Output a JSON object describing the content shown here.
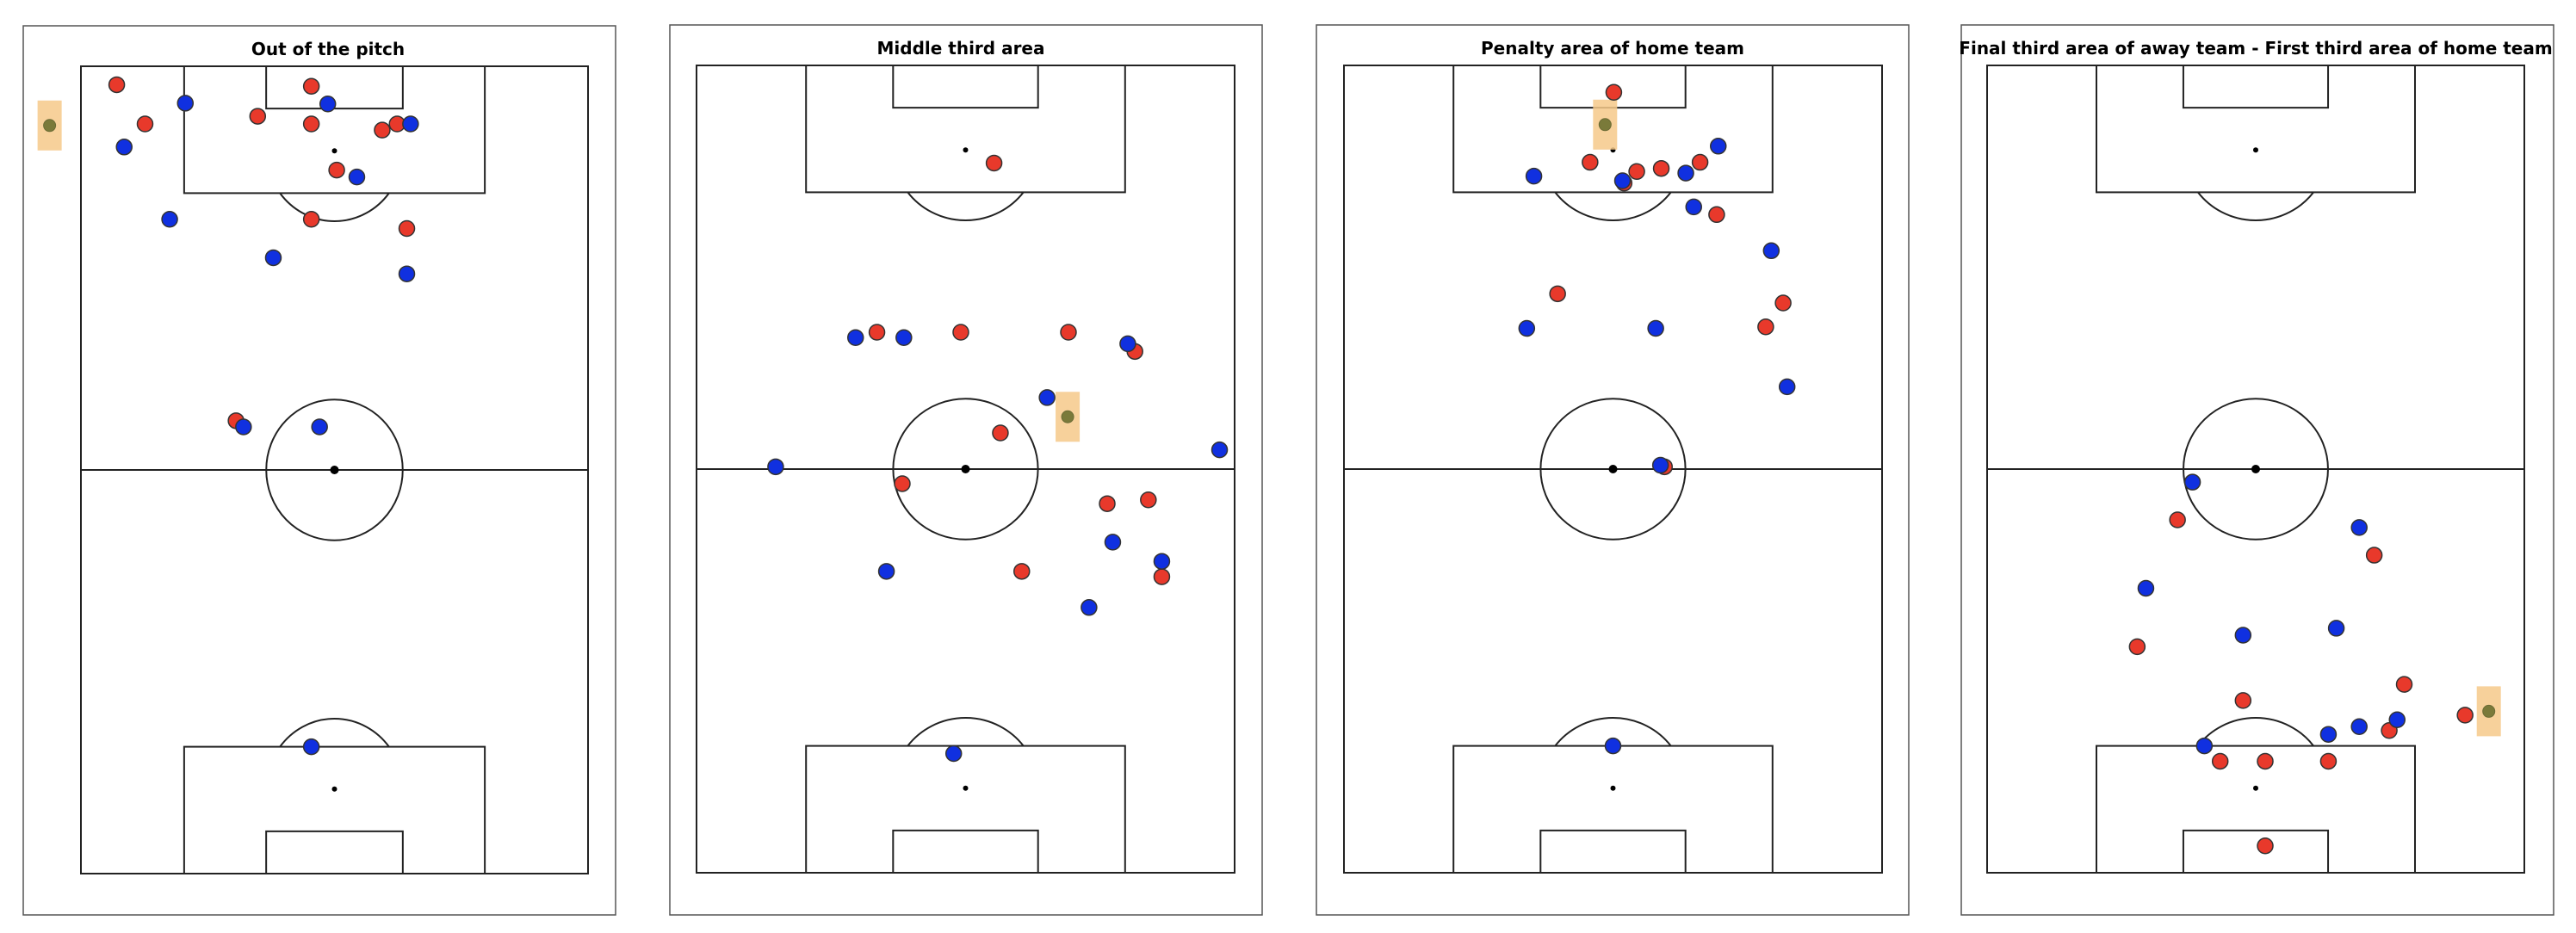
{
  "colors": {
    "home": "#e8392b",
    "away": "#1030e0",
    "ball": "#7a7a3a",
    "ball_highlight": "#f6c98a",
    "lines": "#222222",
    "frame": "#555555"
  },
  "chart_data": [
    {
      "type": "scatter",
      "title": "Out of the pitch",
      "xlim": [
        0,
        68
      ],
      "ylim": [
        0,
        105
      ],
      "home": [
        [
          4.8,
          102.6
        ],
        [
          8.6,
          97.5
        ],
        [
          30.9,
          102.4
        ],
        [
          23.7,
          98.5
        ],
        [
          30.9,
          97.5
        ],
        [
          40.4,
          96.7
        ],
        [
          42.4,
          97.5
        ],
        [
          34.3,
          91.5
        ],
        [
          30.9,
          85.1
        ],
        [
          43.7,
          83.9
        ],
        [
          20.8,
          58.9
        ]
      ],
      "away": [
        [
          14.0,
          100.2
        ],
        [
          5.8,
          94.5
        ],
        [
          33.1,
          100.1
        ],
        [
          44.2,
          97.5
        ],
        [
          37.0,
          90.6
        ],
        [
          11.9,
          85.1
        ],
        [
          25.8,
          80.1
        ],
        [
          43.7,
          78.0
        ],
        [
          21.8,
          58.1
        ],
        [
          32.0,
          58.1
        ],
        [
          30.9,
          16.5
        ]
      ],
      "ball": [
        -4.2,
        97.3
      ]
    },
    {
      "type": "scatter",
      "title": "Middle third area",
      "xlim": [
        0,
        68
      ],
      "ylim": [
        0,
        105
      ],
      "home": [
        [
          37.6,
          92.3
        ],
        [
          22.8,
          70.3
        ],
        [
          33.4,
          70.3
        ],
        [
          47.0,
          70.3
        ],
        [
          55.4,
          67.8
        ],
        [
          38.4,
          57.2
        ],
        [
          26.0,
          50.6
        ],
        [
          57.1,
          48.5
        ],
        [
          51.9,
          48.0
        ],
        [
          58.8,
          38.5
        ],
        [
          41.1,
          39.2
        ]
      ],
      "away": [
        [
          20.1,
          69.6
        ],
        [
          26.2,
          69.6
        ],
        [
          54.5,
          68.8
        ],
        [
          44.3,
          61.8
        ],
        [
          10.0,
          52.8
        ],
        [
          66.1,
          55.0
        ],
        [
          52.6,
          43.0
        ],
        [
          24.0,
          39.2
        ],
        [
          58.8,
          40.5
        ],
        [
          49.6,
          34.5
        ],
        [
          32.5,
          15.5
        ]
      ],
      "ball": [
        46.9,
        59.3
      ]
    },
    {
      "type": "scatter",
      "title": "Penalty area of home team",
      "xlim": [
        0,
        68
      ],
      "ylim": [
        0,
        105
      ],
      "home": [
        [
          34.1,
          101.5
        ],
        [
          31.1,
          92.4
        ],
        [
          37.0,
          91.2
        ],
        [
          40.1,
          91.6
        ],
        [
          45.0,
          92.4
        ],
        [
          47.1,
          85.6
        ],
        [
          27.0,
          75.3
        ],
        [
          55.5,
          74.1
        ],
        [
          53.3,
          71.0
        ],
        [
          40.5,
          52.8
        ],
        [
          35.4,
          89.7
        ]
      ],
      "away": [
        [
          24.0,
          90.6
        ],
        [
          35.2,
          90.0
        ],
        [
          43.2,
          91.0
        ],
        [
          47.3,
          94.5
        ],
        [
          44.2,
          86.6
        ],
        [
          54.0,
          80.9
        ],
        [
          23.1,
          70.8
        ],
        [
          39.4,
          70.8
        ],
        [
          56.0,
          63.2
        ],
        [
          40.0,
          53.0
        ],
        [
          34.0,
          16.5
        ]
      ],
      "ball": [
        33.0,
        97.3
      ]
    },
    {
      "type": "scatter",
      "title": "Final third area of away team - First third area of home team",
      "xlim": [
        0,
        68
      ],
      "ylim": [
        0,
        105
      ],
      "home": [
        [
          24.1,
          45.9
        ],
        [
          49.0,
          41.3
        ],
        [
          19.0,
          29.4
        ],
        [
          32.4,
          22.4
        ],
        [
          52.8,
          24.5
        ],
        [
          50.9,
          18.5
        ],
        [
          60.5,
          20.5
        ],
        [
          29.5,
          14.5
        ],
        [
          35.2,
          14.5
        ],
        [
          43.2,
          14.5
        ],
        [
          35.2,
          3.5
        ]
      ],
      "away": [
        [
          26.0,
          50.8
        ],
        [
          47.1,
          44.9
        ],
        [
          20.1,
          37.0
        ],
        [
          32.4,
          30.9
        ],
        [
          44.2,
          31.8
        ],
        [
          51.9,
          19.9
        ],
        [
          47.1,
          19.0
        ],
        [
          43.2,
          18.0
        ],
        [
          27.5,
          16.5
        ]
      ],
      "ball": [
        63.5,
        21.0
      ]
    }
  ]
}
